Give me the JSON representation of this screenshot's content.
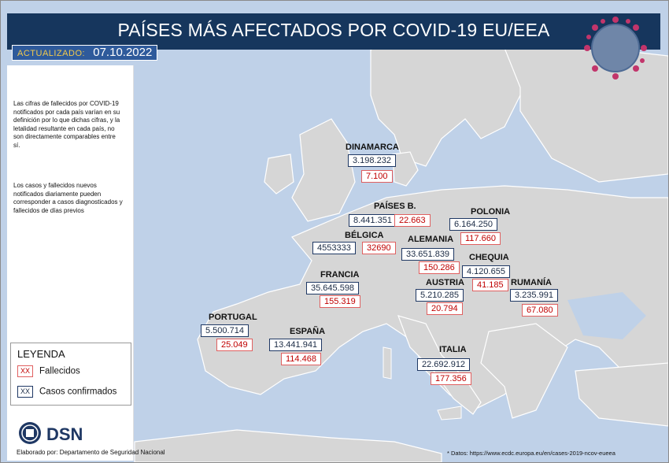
{
  "header": {
    "title": "PAÍSES MÁS AFECTADOS POR COVID-19 EU/EEA"
  },
  "updated": {
    "label": "ACTUALIZADO:",
    "date": "07.10.2022"
  },
  "sidebar": {
    "note1": "Las cifras de fallecidos por COVID-19 notificados por cada país varían en su definición por lo que dichas cifras, y la letalidad resultante en cada país, no son directamente comparables entre sí.",
    "note2": "Los casos y fallecidos nuevos notificados diariamente pueden corresponder a casos diagnosticados y fallecidos de días previos"
  },
  "legend": {
    "title": "LEYENDA",
    "items": [
      {
        "marker": "XX",
        "label": "Fallecidos"
      },
      {
        "marker": "XX",
        "label": "Casos confirmados"
      }
    ]
  },
  "footer": {
    "logo_text": "DSN",
    "credit": "Elaborado por: Departamento de Seguridad Nacional",
    "source": "* Datos: https://www.ecdc.europa.eu/en/cases-2019-ncov-eueea"
  },
  "countries": [
    {
      "name": "DINAMARCA",
      "cases": "3.198.232",
      "deaths": "7.100"
    },
    {
      "name": "PAÍSES B.",
      "cases": "8.441.351",
      "deaths": "22.663"
    },
    {
      "name": "POLONIA",
      "cases": "6.164.250",
      "deaths": "117.660"
    },
    {
      "name": "BÉLGICA",
      "cases": "4553333",
      "deaths": "32690"
    },
    {
      "name": "ALEMANIA",
      "cases": "33.651.839",
      "deaths": "150.286"
    },
    {
      "name": "CHEQUIA",
      "cases": "4.120.655",
      "deaths": "41.185"
    },
    {
      "name": "FRANCIA",
      "cases": "35.645.598",
      "deaths": "155.319"
    },
    {
      "name": "AUSTRIA",
      "cases": "5.210.285",
      "deaths": "20.794"
    },
    {
      "name": "RUMANÍA",
      "cases": "3.235.991",
      "deaths": "67.080"
    },
    {
      "name": "PORTUGAL",
      "cases": "5.500.714",
      "deaths": "25.049"
    },
    {
      "name": "ESPAÑA",
      "cases": "13.441.941",
      "deaths": "114.468"
    },
    {
      "name": "ITALIA",
      "cases": "22.692.912",
      "deaths": "177.356"
    }
  ],
  "colors": {
    "header": "#16365d",
    "sea": "#bfd1e8",
    "land": "#d6d6d6",
    "cases_border": "#1f3864",
    "deaths_text": "#c00000"
  }
}
